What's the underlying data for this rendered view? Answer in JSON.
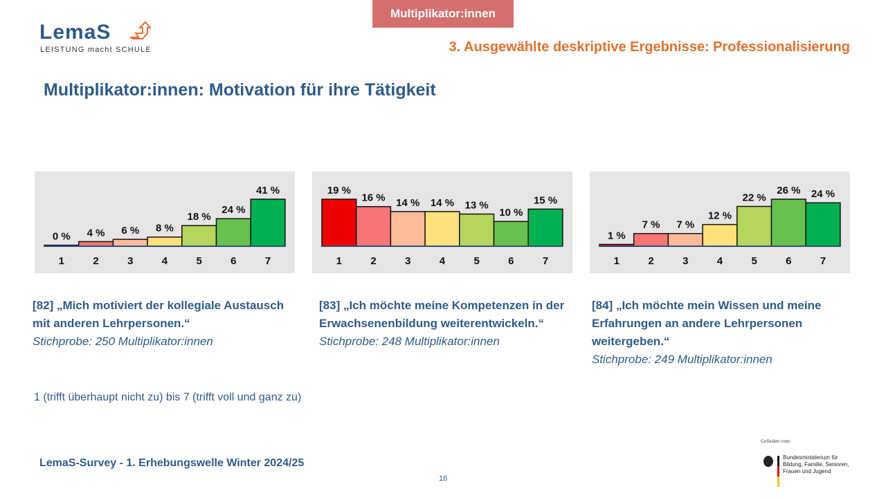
{
  "header": {
    "tab_label": "Multiplikator:innen",
    "logo": {
      "word": "LemaS",
      "tagline": "LEISTUNG macht SCHULE"
    },
    "section": "3. Ausgewählte deskriptive Ergebnisse: Professionalisierung",
    "title": "Multiplikator:innen: Motivation für ihre Tätigkeit"
  },
  "colors": {
    "accent_blue": "#2F5B8A",
    "accent_orange": "#E0712F",
    "tab": "#D46F6E",
    "panel": "#E6E4E4",
    "bars": [
      "#EE0000",
      "#F87575",
      "#FFBB99",
      "#FFE07A",
      "#B5D65A",
      "#66C14E",
      "#00B050"
    ]
  },
  "chart_data": [
    {
      "type": "bar",
      "categories": [
        "1",
        "2",
        "3",
        "4",
        "5",
        "6",
        "7"
      ],
      "values": [
        0,
        4,
        6,
        8,
        18,
        24,
        41
      ],
      "labels": [
        "0 %",
        "4 %",
        "6 %",
        "8 %",
        "18 %",
        "24 %",
        "41 %"
      ],
      "unit": "%"
    },
    {
      "type": "bar",
      "categories": [
        "1",
        "2",
        "3",
        "4",
        "5",
        "6",
        "7"
      ],
      "values": [
        19,
        16,
        14,
        14,
        13,
        10,
        15
      ],
      "labels": [
        "19 %",
        "16 %",
        "14 %",
        "14 %",
        "13 %",
        "10 %",
        "15 %"
      ],
      "unit": "%"
    },
    {
      "type": "bar",
      "categories": [
        "1",
        "2",
        "3",
        "4",
        "5",
        "6",
        "7"
      ],
      "values": [
        1,
        7,
        7,
        12,
        22,
        26,
        24
      ],
      "labels": [
        "1 %",
        "7 %",
        "7 %",
        "12 %",
        "22 %",
        "26 %",
        "24 %"
      ],
      "unit": "%"
    }
  ],
  "captions": [
    {
      "question": "[82] „Mich motiviert der kollegiale Austausch mit anderen Lehrpersonen.“",
      "sample": "Stichprobe: 250 Multiplikator:innen"
    },
    {
      "question": "[83] „Ich möchte meine Kompetenzen in der Erwachsenenbildung weiterentwickeln.“",
      "sample": "Stichprobe: 248 Multiplikator:innen"
    },
    {
      "question": "[84] „Ich möchte mein Wissen und meine Erfahrungen an andere Lehrpersonen weitergeben.“",
      "sample": "Stichprobe: 249 Multiplikator:innen"
    }
  ],
  "scale_note": "1 (trifft überhaupt nicht zu) bis 7 (trifft voll und ganz zu)",
  "footer": {
    "survey": "LemaS-Survey  - 1. Erhebungswelle Winter 2024/25",
    "page": "16",
    "funded_by": "Gefördert vom:",
    "ministry": "Bundesministerium für Bildung, Familie, Senioren, Frauen und Jugend"
  }
}
